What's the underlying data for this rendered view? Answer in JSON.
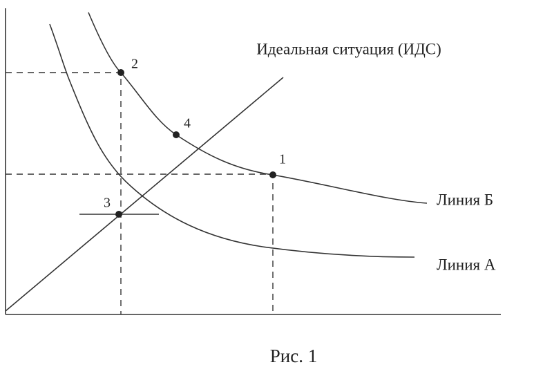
{
  "lines": [
    {
      "label": "Идеальная ситуация (ИДС)"
    },
    {
      "label": "Линия Б"
    },
    {
      "label": "Линия А"
    }
  ],
  "points": [
    {
      "label": "2"
    },
    {
      "label": "4"
    },
    {
      "label": "1"
    },
    {
      "label": "3"
    }
  ],
  "caption": "Рис. 1"
}
